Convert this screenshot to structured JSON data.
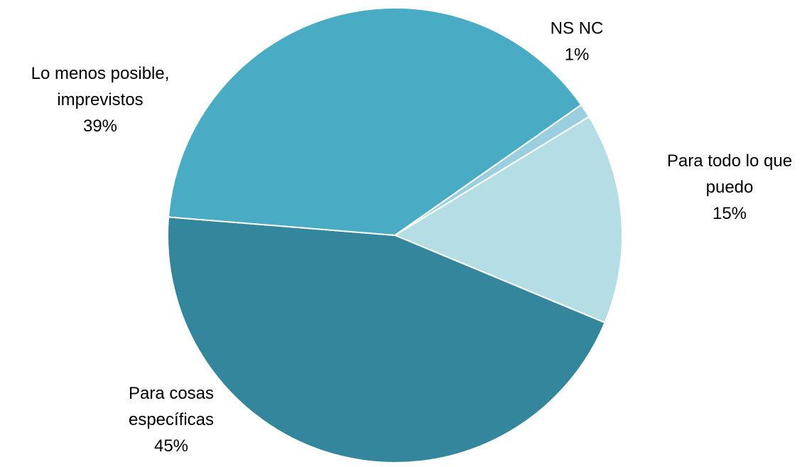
{
  "chart_data": {
    "type": "pie",
    "title": "",
    "start_angle_deg": 55,
    "direction": "clockwise",
    "slices": [
      {
        "label_lines": [
          "NS NC"
        ],
        "pct_label": "1%",
        "value": 1,
        "color": "#9BCFDF"
      },
      {
        "label_lines": [
          "Para todo lo que",
          "puedo"
        ],
        "pct_label": "15%",
        "value": 15,
        "color": "#B5DDE6"
      },
      {
        "label_lines": [
          "Para cosas",
          "específicas"
        ],
        "pct_label": "45%",
        "value": 45,
        "color": "#33869C"
      },
      {
        "label_lines": [
          "Lo menos posible,",
          "imprevistos"
        ],
        "pct_label": "39%",
        "value": 39,
        "color": "#4AABC4"
      }
    ],
    "legend": "none",
    "data_labels": "outside, category name and percentage"
  }
}
